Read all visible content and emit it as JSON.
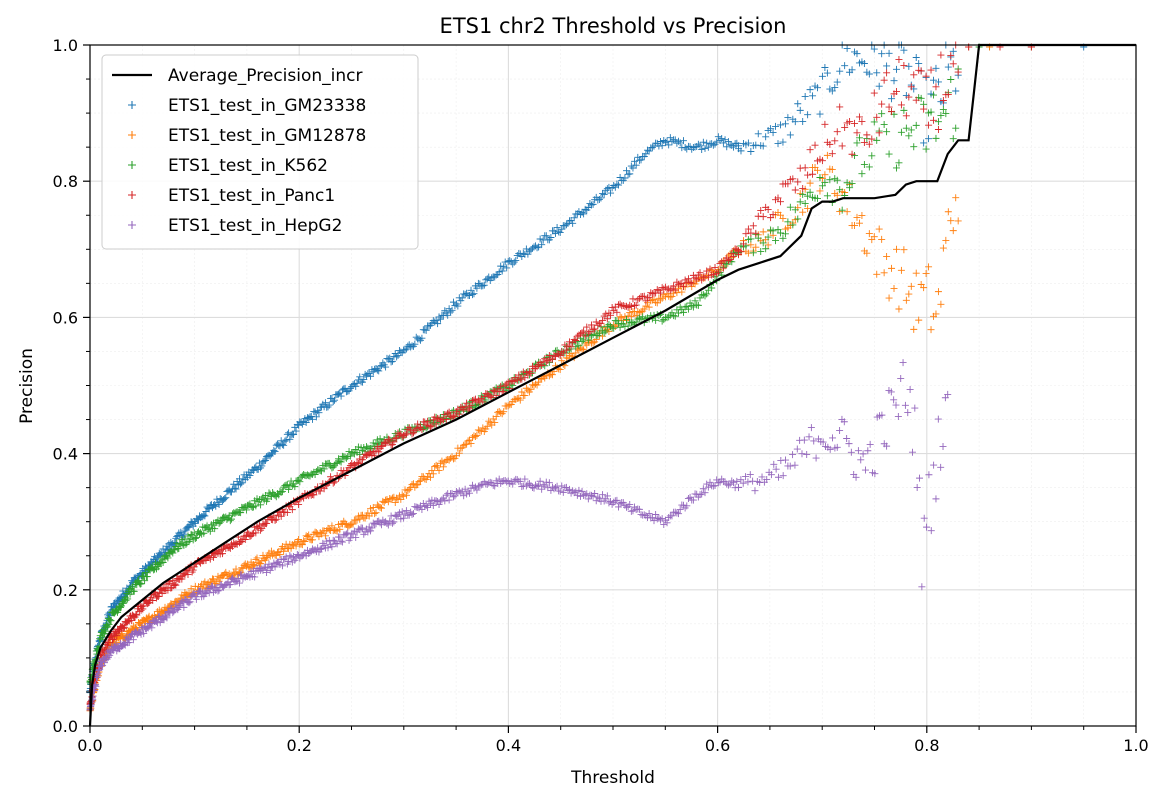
{
  "chart_data": {
    "type": "scatter",
    "title": "ETS1 chr2 Threshold vs Precision",
    "xlabel": "Threshold",
    "ylabel": "Precision",
    "xlim": [
      0.0,
      1.0
    ],
    "ylim": [
      0.0,
      1.0
    ],
    "xticks": [
      "0.0",
      "0.2",
      "0.4",
      "0.6",
      "0.8",
      "1.0"
    ],
    "yticks": [
      "0.0",
      "0.2",
      "0.4",
      "0.6",
      "0.8",
      "1.0"
    ],
    "grid": true,
    "legend_position": "upper-left",
    "series": [
      {
        "name": "Average_Precision_incr",
        "style": "line",
        "color": "#000000",
        "x": [
          0.0,
          0.002,
          0.005,
          0.01,
          0.02,
          0.03,
          0.05,
          0.07,
          0.1,
          0.13,
          0.16,
          0.2,
          0.25,
          0.3,
          0.35,
          0.4,
          0.45,
          0.5,
          0.55,
          0.6,
          0.62,
          0.64,
          0.66,
          0.68,
          0.69,
          0.7,
          0.71,
          0.72,
          0.75,
          0.77,
          0.78,
          0.79,
          0.8,
          0.81,
          0.82,
          0.83,
          0.84,
          0.845,
          0.85,
          1.0
        ],
        "y": [
          0.0,
          0.06,
          0.09,
          0.115,
          0.14,
          0.16,
          0.185,
          0.21,
          0.24,
          0.27,
          0.3,
          0.335,
          0.375,
          0.415,
          0.45,
          0.49,
          0.53,
          0.57,
          0.61,
          0.655,
          0.67,
          0.68,
          0.69,
          0.72,
          0.76,
          0.77,
          0.77,
          0.775,
          0.775,
          0.78,
          0.795,
          0.8,
          0.8,
          0.8,
          0.84,
          0.86,
          0.86,
          0.93,
          1.0,
          1.0
        ]
      },
      {
        "name": "ETS1_test_in_GM23338",
        "style": "plus",
        "color": "#1f77b4",
        "x": [
          0.0,
          0.005,
          0.01,
          0.02,
          0.04,
          0.06,
          0.08,
          0.1,
          0.13,
          0.16,
          0.2,
          0.25,
          0.3,
          0.35,
          0.4,
          0.45,
          0.5,
          0.53,
          0.55,
          0.58,
          0.6,
          0.62,
          0.64,
          0.66,
          0.68,
          0.7,
          0.72,
          0.74,
          0.76,
          0.78,
          0.8,
          0.82,
          0.84,
          0.86,
          0.9,
          0.95
        ],
        "y": [
          0.05,
          0.1,
          0.13,
          0.17,
          0.21,
          0.24,
          0.27,
          0.3,
          0.34,
          0.38,
          0.44,
          0.5,
          0.55,
          0.62,
          0.68,
          0.73,
          0.79,
          0.84,
          0.86,
          0.85,
          0.86,
          0.85,
          0.86,
          0.87,
          0.9,
          0.93,
          0.98,
          0.98,
          0.97,
          0.96,
          0.9,
          0.95,
          1.0,
          1.0,
          1.0,
          1.0
        ]
      },
      {
        "name": "ETS1_test_in_GM12878",
        "style": "plus",
        "color": "#ff7f0e",
        "x": [
          0.0,
          0.005,
          0.01,
          0.02,
          0.04,
          0.06,
          0.08,
          0.1,
          0.15,
          0.2,
          0.25,
          0.3,
          0.35,
          0.4,
          0.45,
          0.5,
          0.55,
          0.6,
          0.62,
          0.64,
          0.66,
          0.68,
          0.7,
          0.72,
          0.74,
          0.76,
          0.78,
          0.79,
          0.8,
          0.81,
          0.82,
          0.83,
          0.84,
          0.86,
          0.9
        ],
        "y": [
          0.02,
          0.06,
          0.09,
          0.12,
          0.14,
          0.16,
          0.18,
          0.2,
          0.235,
          0.27,
          0.3,
          0.34,
          0.4,
          0.47,
          0.53,
          0.59,
          0.63,
          0.67,
          0.7,
          0.71,
          0.74,
          0.77,
          0.82,
          0.78,
          0.73,
          0.68,
          0.65,
          0.62,
          0.63,
          0.6,
          0.72,
          0.8,
          1.0,
          1.0,
          1.0
        ]
      },
      {
        "name": "ETS1_test_in_K562",
        "style": "plus",
        "color": "#2ca02c",
        "x": [
          0.0,
          0.005,
          0.01,
          0.02,
          0.04,
          0.06,
          0.08,
          0.1,
          0.15,
          0.2,
          0.25,
          0.3,
          0.35,
          0.4,
          0.45,
          0.5,
          0.55,
          0.58,
          0.6,
          0.62,
          0.64,
          0.66,
          0.68,
          0.7,
          0.72,
          0.74,
          0.76,
          0.78,
          0.8,
          0.82,
          0.85,
          0.9
        ],
        "y": [
          0.06,
          0.1,
          0.13,
          0.16,
          0.2,
          0.23,
          0.26,
          0.28,
          0.32,
          0.36,
          0.4,
          0.43,
          0.46,
          0.5,
          0.55,
          0.59,
          0.6,
          0.62,
          0.66,
          0.7,
          0.71,
          0.73,
          0.76,
          0.81,
          0.79,
          0.84,
          0.86,
          0.87,
          0.88,
          0.9,
          1.0,
          1.0
        ]
      },
      {
        "name": "ETS1_test_in_Panc1",
        "style": "plus",
        "color": "#d62728",
        "x": [
          0.0,
          0.005,
          0.01,
          0.02,
          0.04,
          0.06,
          0.08,
          0.1,
          0.15,
          0.2,
          0.25,
          0.3,
          0.35,
          0.4,
          0.45,
          0.5,
          0.55,
          0.6,
          0.62,
          0.64,
          0.66,
          0.68,
          0.7,
          0.72,
          0.74,
          0.76,
          0.78,
          0.8,
          0.82,
          0.84,
          0.87,
          0.9
        ],
        "y": [
          0.03,
          0.07,
          0.1,
          0.13,
          0.16,
          0.19,
          0.21,
          0.235,
          0.28,
          0.33,
          0.38,
          0.43,
          0.46,
          0.5,
          0.55,
          0.61,
          0.64,
          0.67,
          0.7,
          0.74,
          0.78,
          0.8,
          0.85,
          0.88,
          0.86,
          0.92,
          0.94,
          0.9,
          0.96,
          1.0,
          1.0,
          1.0
        ]
      },
      {
        "name": "ETS1_test_in_HepG2",
        "style": "plus",
        "color": "#9467bd",
        "x": [
          0.0,
          0.005,
          0.01,
          0.02,
          0.04,
          0.06,
          0.08,
          0.1,
          0.15,
          0.2,
          0.25,
          0.3,
          0.35,
          0.38,
          0.4,
          0.45,
          0.5,
          0.53,
          0.55,
          0.58,
          0.6,
          0.62,
          0.64,
          0.66,
          0.68,
          0.7,
          0.72,
          0.74,
          0.76,
          0.78,
          0.79,
          0.795,
          0.8,
          0.81,
          0.82
        ],
        "y": [
          0.02,
          0.06,
          0.09,
          0.11,
          0.13,
          0.15,
          0.17,
          0.19,
          0.22,
          0.25,
          0.28,
          0.31,
          0.34,
          0.355,
          0.36,
          0.35,
          0.33,
          0.31,
          0.3,
          0.34,
          0.36,
          0.355,
          0.36,
          0.37,
          0.4,
          0.43,
          0.42,
          0.38,
          0.44,
          0.5,
          0.42,
          0.25,
          0.3,
          0.4,
          0.5
        ]
      }
    ]
  }
}
